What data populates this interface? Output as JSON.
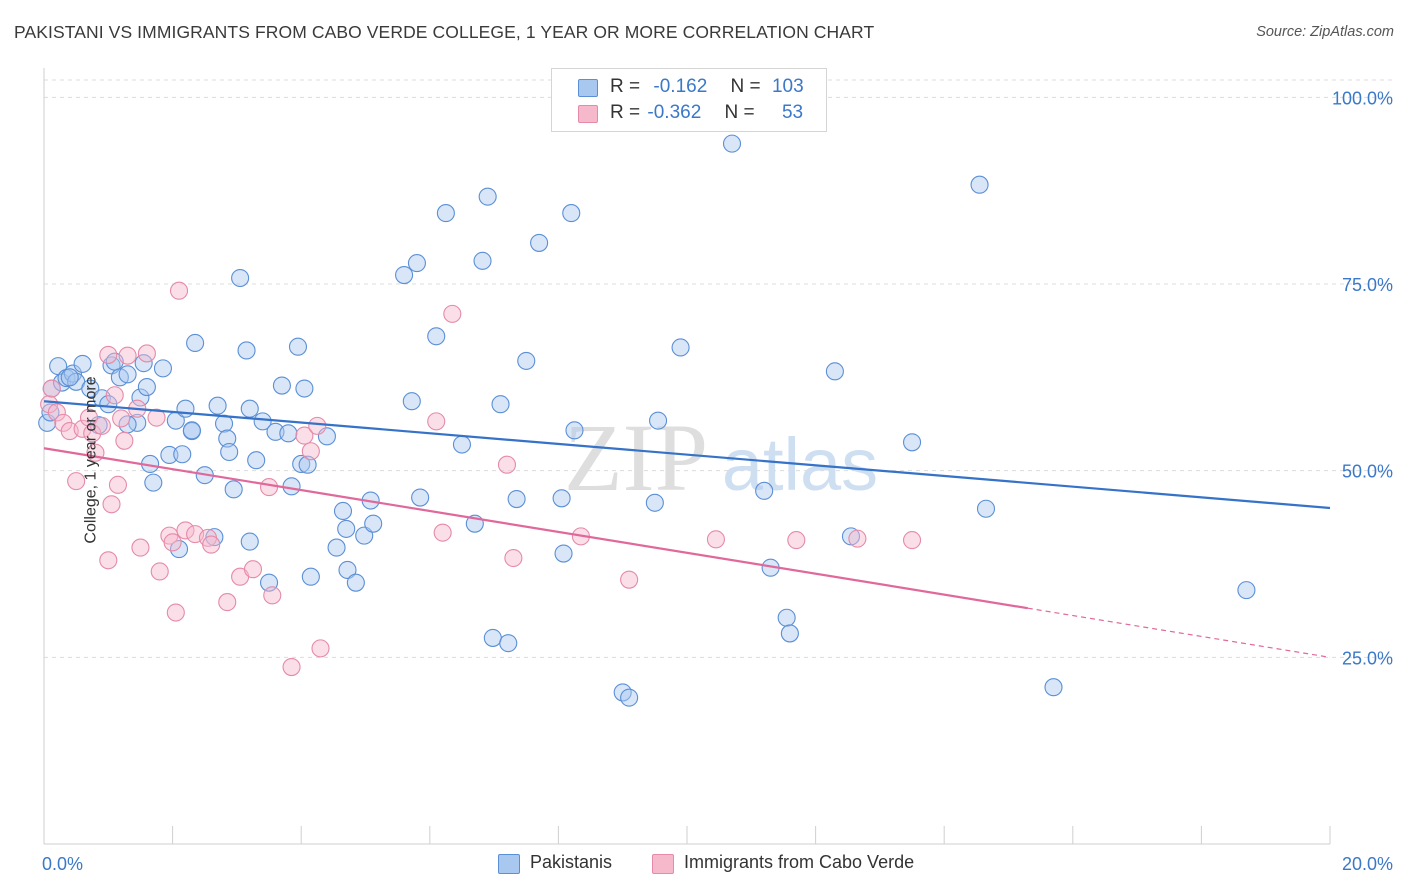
{
  "title": "PAKISTANI VS IMMIGRANTS FROM CABO VERDE COLLEGE, 1 YEAR OR MORE CORRELATION CHART",
  "source": "Source: ZipAtlas.com",
  "watermark": {
    "zip": "ZIP",
    "atlas": "atlas"
  },
  "legend": {
    "r_label": "R =",
    "n_label": "N =",
    "series": [
      {
        "r": "-0.162",
        "n": "103"
      },
      {
        "r": "-0.362",
        "n": "53"
      }
    ]
  },
  "bottom_legend": [
    "Pakistanis",
    "Immigrants from Cabo Verde"
  ],
  "colors": {
    "blue_fill": "#a8c8f0",
    "blue_stroke": "#5b8fd6",
    "blue_line": "#3572c8",
    "pink_fill": "#f6b8cb",
    "pink_stroke": "#e58aa8",
    "pink_line": "#e0689a",
    "axis_text": "#3a78c8",
    "grid": "#dcdcdc"
  },
  "chart_data": {
    "type": "scatter",
    "title": "PAKISTANI VS IMMIGRANTS FROM CABO VERDE COLLEGE, 1 YEAR OR MORE CORRELATION CHART",
    "xlabel": "",
    "ylabel": "College, 1 year or more",
    "xlim": [
      0,
      20
    ],
    "ylim": [
      0,
      105
    ],
    "x_tick_labels": [
      "0.0%",
      "20.0%"
    ],
    "y_ticks": [
      25,
      50,
      75,
      100
    ],
    "y_tick_labels": [
      "25.0%",
      "50.0%",
      "75.0%",
      "100.0%"
    ],
    "series": [
      {
        "name": "Pakistanis",
        "trend": {
          "x": [
            0,
            20
          ],
          "y": [
            59.3,
            45.0
          ],
          "solid_until": 20
        },
        "points": [
          [
            0.05,
            56.4
          ],
          [
            0.1,
            57.8
          ],
          [
            0.12,
            61.0
          ],
          [
            0.22,
            64.0
          ],
          [
            0.28,
            61.8
          ],
          [
            0.35,
            62.4
          ],
          [
            0.45,
            63.0
          ],
          [
            0.5,
            61.9
          ],
          [
            0.6,
            64.3
          ],
          [
            0.72,
            61.0
          ],
          [
            0.85,
            56.1
          ],
          [
            0.9,
            59.7
          ],
          [
            1.0,
            58.9
          ],
          [
            1.05,
            64.1
          ],
          [
            1.1,
            64.6
          ],
          [
            1.18,
            62.5
          ],
          [
            1.3,
            62.9
          ],
          [
            1.45,
            56.4
          ],
          [
            1.5,
            59.8
          ],
          [
            1.55,
            64.4
          ],
          [
            1.6,
            61.2
          ],
          [
            1.65,
            50.9
          ],
          [
            1.7,
            48.4
          ],
          [
            1.85,
            63.7
          ],
          [
            1.95,
            52.1
          ],
          [
            2.05,
            56.7
          ],
          [
            2.15,
            52.2
          ],
          [
            2.2,
            58.3
          ],
          [
            2.3,
            55.3
          ],
          [
            2.35,
            67.1
          ],
          [
            2.5,
            49.4
          ],
          [
            2.65,
            41.1
          ],
          [
            2.7,
            58.7
          ],
          [
            2.8,
            56.3
          ],
          [
            2.85,
            54.3
          ],
          [
            2.88,
            52.5
          ],
          [
            2.95,
            47.5
          ],
          [
            3.05,
            75.8
          ],
          [
            3.15,
            66.1
          ],
          [
            3.2,
            58.3
          ],
          [
            3.3,
            51.4
          ],
          [
            3.4,
            56.6
          ],
          [
            3.5,
            35.0
          ],
          [
            3.6,
            55.2
          ],
          [
            3.7,
            61.4
          ],
          [
            3.8,
            55.0
          ],
          [
            3.85,
            47.9
          ],
          [
            3.95,
            66.6
          ],
          [
            4.0,
            50.9
          ],
          [
            4.05,
            61.0
          ],
          [
            4.1,
            50.8
          ],
          [
            4.15,
            35.8
          ],
          [
            4.4,
            54.6
          ],
          [
            4.55,
            39.7
          ],
          [
            4.65,
            44.6
          ],
          [
            4.7,
            42.2
          ],
          [
            4.72,
            36.7
          ],
          [
            4.85,
            35.0
          ],
          [
            4.98,
            41.3
          ],
          [
            5.08,
            46.0
          ],
          [
            5.12,
            42.9
          ],
          [
            5.6,
            76.2
          ],
          [
            5.72,
            59.3
          ],
          [
            5.8,
            77.8
          ],
          [
            5.85,
            46.4
          ],
          [
            6.1,
            68.0
          ],
          [
            6.25,
            84.5
          ],
          [
            6.7,
            42.9
          ],
          [
            6.82,
            78.1
          ],
          [
            6.9,
            86.7
          ],
          [
            6.98,
            27.6
          ],
          [
            7.1,
            58.9
          ],
          [
            7.22,
            26.9
          ],
          [
            7.35,
            46.2
          ],
          [
            7.5,
            64.7
          ],
          [
            7.7,
            80.5
          ],
          [
            8.05,
            46.3
          ],
          [
            8.08,
            38.9
          ],
          [
            8.25,
            55.4
          ],
          [
            8.2,
            84.5
          ],
          [
            9.0,
            20.3
          ],
          [
            9.1,
            19.6
          ],
          [
            9.5,
            45.7
          ],
          [
            9.55,
            56.7
          ],
          [
            9.9,
            66.5
          ],
          [
            10.7,
            93.8
          ],
          [
            11.2,
            47.3
          ],
          [
            11.3,
            37.0
          ],
          [
            11.55,
            30.3
          ],
          [
            11.6,
            28.2
          ],
          [
            12.3,
            63.3
          ],
          [
            12.55,
            41.2
          ],
          [
            13.5,
            53.8
          ],
          [
            14.55,
            88.3
          ],
          [
            14.65,
            44.9
          ],
          [
            15.7,
            21.0
          ],
          [
            18.7,
            34.0
          ],
          [
            2.3,
            55.4
          ],
          [
            1.3,
            56.2
          ],
          [
            0.4,
            62.5
          ],
          [
            3.2,
            40.5
          ],
          [
            2.1,
            39.5
          ],
          [
            6.5,
            53.5
          ]
        ]
      },
      {
        "name": "Immigrants from Cabo Verde",
        "trend": {
          "x": [
            0,
            20
          ],
          "y": [
            53.0,
            25.0
          ],
          "solid_until": 15.3
        },
        "points": [
          [
            0.08,
            58.9
          ],
          [
            0.12,
            61.0
          ],
          [
            0.2,
            57.8
          ],
          [
            0.3,
            56.4
          ],
          [
            0.4,
            55.3
          ],
          [
            0.5,
            48.6
          ],
          [
            0.6,
            55.6
          ],
          [
            0.7,
            57.1
          ],
          [
            0.75,
            55.0
          ],
          [
            0.8,
            52.4
          ],
          [
            0.9,
            56.0
          ],
          [
            1.0,
            38.0
          ],
          [
            1.0,
            65.5
          ],
          [
            1.05,
            45.5
          ],
          [
            1.1,
            60.1
          ],
          [
            1.15,
            48.1
          ],
          [
            1.2,
            57.0
          ],
          [
            1.25,
            54.0
          ],
          [
            1.3,
            65.4
          ],
          [
            1.45,
            58.3
          ],
          [
            1.5,
            39.7
          ],
          [
            1.6,
            65.7
          ],
          [
            1.75,
            57.1
          ],
          [
            1.8,
            36.5
          ],
          [
            1.95,
            41.3
          ],
          [
            2.0,
            40.4
          ],
          [
            2.05,
            31.0
          ],
          [
            2.1,
            74.1
          ],
          [
            2.2,
            42.0
          ],
          [
            2.35,
            41.5
          ],
          [
            2.55,
            41.0
          ],
          [
            2.6,
            40.1
          ],
          [
            2.85,
            32.4
          ],
          [
            3.05,
            35.8
          ],
          [
            3.25,
            36.8
          ],
          [
            3.5,
            47.8
          ],
          [
            3.55,
            33.3
          ],
          [
            3.85,
            23.7
          ],
          [
            4.05,
            54.7
          ],
          [
            4.15,
            52.6
          ],
          [
            4.25,
            56.0
          ],
          [
            4.3,
            26.2
          ],
          [
            6.1,
            56.6
          ],
          [
            6.2,
            41.7
          ],
          [
            6.35,
            71.0
          ],
          [
            7.2,
            50.8
          ],
          [
            7.3,
            38.3
          ],
          [
            8.35,
            41.2
          ],
          [
            9.1,
            35.4
          ],
          [
            10.45,
            40.8
          ],
          [
            11.7,
            40.7
          ],
          [
            12.65,
            40.9
          ],
          [
            13.5,
            40.7
          ]
        ]
      }
    ]
  }
}
